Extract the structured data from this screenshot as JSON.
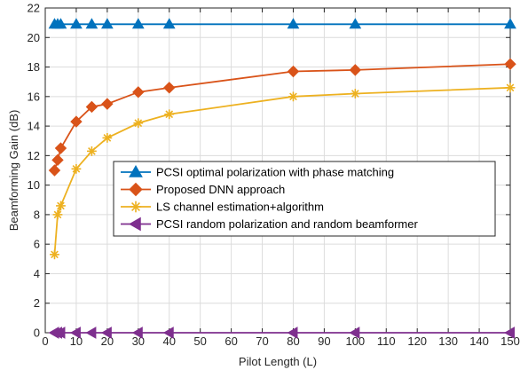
{
  "chart_data": {
    "type": "line",
    "xlabel": "Pilot Length (L)",
    "ylabel": "Beamforming Gain (dB)",
    "xlim": [
      0,
      150
    ],
    "ylim": [
      0,
      22
    ],
    "xticks": [
      0,
      10,
      20,
      30,
      40,
      50,
      60,
      70,
      80,
      90,
      100,
      110,
      120,
      130,
      140,
      150
    ],
    "yticks": [
      0,
      2,
      4,
      6,
      8,
      10,
      12,
      14,
      16,
      18,
      20,
      22
    ],
    "grid": true,
    "legend_position": "center-right",
    "series": [
      {
        "name": "PCSI optimal polarization with phase matching",
        "color": "#0072BD",
        "marker": "triangle-up",
        "x": [
          3,
          4,
          5,
          10,
          15,
          20,
          30,
          40,
          80,
          100,
          150
        ],
        "y": [
          20.9,
          20.9,
          20.9,
          20.9,
          20.9,
          20.9,
          20.9,
          20.9,
          20.9,
          20.9,
          20.9
        ]
      },
      {
        "name": "Proposed DNN approach",
        "color": "#D95319",
        "marker": "diamond",
        "x": [
          3,
          4,
          5,
          10,
          15,
          20,
          30,
          40,
          80,
          100,
          150
        ],
        "y": [
          11.0,
          11.7,
          12.5,
          14.3,
          15.3,
          15.5,
          16.3,
          16.6,
          17.7,
          17.8,
          18.2
        ]
      },
      {
        "name": "LS channel estimation+algorithm",
        "color": "#EDB120",
        "marker": "asterisk",
        "x": [
          3,
          4,
          5,
          10,
          15,
          20,
          30,
          40,
          80,
          100,
          150
        ],
        "y": [
          5.3,
          8.0,
          8.6,
          11.1,
          12.3,
          13.2,
          14.2,
          14.8,
          16.0,
          16.2,
          16.6
        ]
      },
      {
        "name": "PCSI random polarization and random beamformer",
        "color": "#7E2F8E",
        "marker": "triangle-left",
        "x": [
          3,
          4,
          5,
          10,
          15,
          20,
          30,
          40,
          80,
          100,
          150
        ],
        "y": [
          0,
          0,
          0,
          0,
          0,
          0,
          0,
          0,
          0,
          0,
          0
        ]
      }
    ]
  }
}
